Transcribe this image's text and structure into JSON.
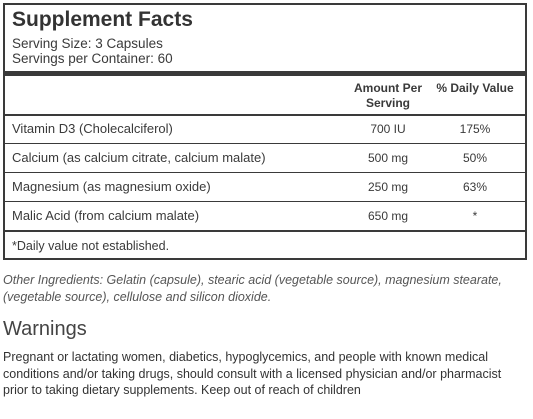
{
  "facts": {
    "title": "Supplement Facts",
    "serving_size": "Serving Size: 3 Capsules",
    "servings_per_container": "Servings per Container: 60",
    "col_amount": "Amount Per Serving",
    "col_daily_value": "% Daily Value",
    "rows": [
      {
        "label": "Vitamin D3 (Cholecalciferol)",
        "amount": "700 IU",
        "dv": "175%"
      },
      {
        "label": "Calcium (as calcium citrate, calcium malate)",
        "amount": "500 mg",
        "dv": "50%"
      },
      {
        "label": "Magnesium (as magnesium oxide)",
        "amount": "250 mg",
        "dv": "63%"
      },
      {
        "label": "Malic Acid (from calcium malate)",
        "amount": "650 mg",
        "dv": "*"
      }
    ],
    "footnote": "*Daily value not established."
  },
  "other_ingredients": "Other Ingredients: Gelatin (capsule), stearic acid (vegetable source), magnesium stearate, (vegetable source), cellulose and silicon dioxide.",
  "warnings": {
    "heading": "Warnings",
    "text": "Pregnant or lactating women, diabetics, hypoglycemics, and people with known medical conditions and/or taking drugs, should consult with a licensed physician and/or pharmacist prior to taking dietary supplements. Keep out of reach of children"
  }
}
